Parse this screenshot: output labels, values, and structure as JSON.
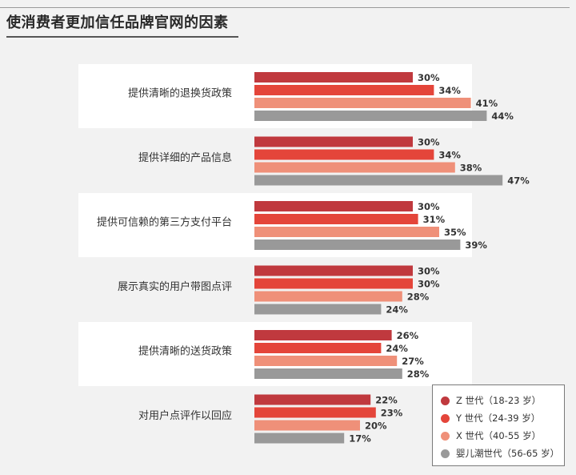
{
  "title": "使消费者更加信任品牌官网的因素",
  "colors": {
    "band": "#ffffff",
    "z": "#c0393e",
    "y": "#e4453a",
    "x": "#ef9079",
    "boomer": "#999999"
  },
  "chart_data": {
    "type": "bar",
    "orientation": "horizontal",
    "categories": [
      "提供清晰的退换货政策",
      "提供详细的产品信息",
      "提供可信赖的第三方支付平台",
      "展示真实的用户带图点评",
      "提供清晰的送货政策",
      "对用户点评作以回应"
    ],
    "series": [
      {
        "name": "Z 世代（18-23 岁）",
        "color": "#c0393e",
        "values": [
          30,
          30,
          30,
          30,
          26,
          22
        ]
      },
      {
        "name": "Y 世代（24-39 岁）",
        "color": "#e4453a",
        "values": [
          34,
          34,
          31,
          30,
          24,
          23
        ]
      },
      {
        "name": "X 世代（40-55 岁）",
        "color": "#ef9079",
        "values": [
          41,
          38,
          35,
          28,
          27,
          20
        ]
      },
      {
        "name": "婴儿潮世代（56-65 岁）",
        "color": "#999999",
        "values": [
          44,
          47,
          39,
          24,
          28,
          17
        ]
      }
    ],
    "value_suffix": "%",
    "xlim": [
      0,
      50
    ],
    "legend_position": "bottom-right",
    "grid": false
  }
}
